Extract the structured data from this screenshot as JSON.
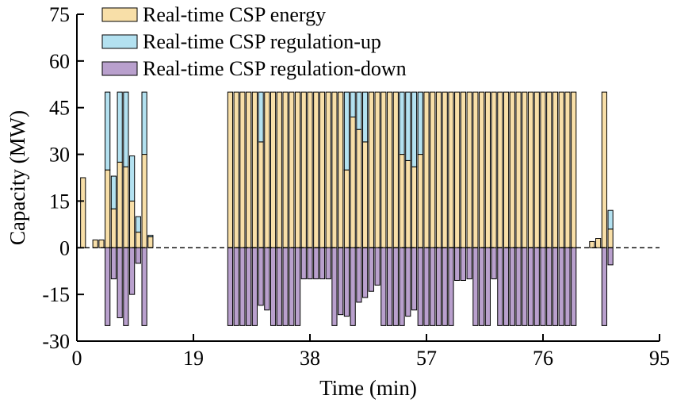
{
  "chart_data": {
    "type": "bar",
    "stacked": true,
    "xlabel": "Time (min)",
    "ylabel": "Capacity (MW)",
    "xlim": [
      0,
      95
    ],
    "ylim": [
      -30,
      75
    ],
    "xticks": [
      0,
      19,
      38,
      57,
      76,
      95
    ],
    "yticks": [
      -30,
      -15,
      0,
      15,
      30,
      45,
      60,
      75
    ],
    "legend_position": "top-left",
    "zero_line": "dashed",
    "bar_width": 0.8,
    "series": [
      {
        "name": "Real-time CSP energy",
        "color": "#f8dfa8",
        "points": [
          [
            1,
            22.5
          ],
          [
            3,
            2.5
          ],
          [
            4,
            2.5
          ],
          [
            5,
            25
          ],
          [
            6,
            12.5
          ],
          [
            7,
            27.5
          ],
          [
            8,
            26
          ],
          [
            9,
            15
          ],
          [
            10,
            5
          ],
          [
            11,
            30
          ],
          [
            12,
            3.5
          ],
          [
            25,
            50
          ],
          [
            26,
            50
          ],
          [
            27,
            50
          ],
          [
            28,
            50
          ],
          [
            29,
            50
          ],
          [
            30,
            34
          ],
          [
            31,
            50
          ],
          [
            32,
            50
          ],
          [
            33,
            50
          ],
          [
            34,
            50
          ],
          [
            35,
            50
          ],
          [
            36,
            50
          ],
          [
            37,
            50
          ],
          [
            38,
            50
          ],
          [
            39,
            50
          ],
          [
            40,
            50
          ],
          [
            41,
            50
          ],
          [
            42,
            50
          ],
          [
            43,
            50
          ],
          [
            44,
            25
          ],
          [
            45,
            42
          ],
          [
            46,
            38
          ],
          [
            47,
            34
          ],
          [
            48,
            50
          ],
          [
            49,
            50
          ],
          [
            50,
            50
          ],
          [
            51,
            50
          ],
          [
            52,
            50
          ],
          [
            53,
            30
          ],
          [
            54,
            28
          ],
          [
            55,
            26
          ],
          [
            56,
            30
          ],
          [
            57,
            50
          ],
          [
            58,
            50
          ],
          [
            59,
            50
          ],
          [
            60,
            50
          ],
          [
            61,
            50
          ],
          [
            62,
            50
          ],
          [
            63,
            50
          ],
          [
            64,
            50
          ],
          [
            65,
            50
          ],
          [
            66,
            50
          ],
          [
            67,
            50
          ],
          [
            68,
            50
          ],
          [
            69,
            50
          ],
          [
            70,
            50
          ],
          [
            71,
            50
          ],
          [
            72,
            50
          ],
          [
            73,
            50
          ],
          [
            74,
            50
          ],
          [
            75,
            50
          ],
          [
            76,
            50
          ],
          [
            77,
            50
          ],
          [
            78,
            50
          ],
          [
            79,
            50
          ],
          [
            80,
            50
          ],
          [
            81,
            50
          ],
          [
            84,
            2
          ],
          [
            85,
            3
          ],
          [
            86,
            50
          ],
          [
            87,
            6
          ]
        ]
      },
      {
        "name": "Real-time CSP regulation-up",
        "color": "#b3e1f0",
        "points": [
          [
            5,
            25
          ],
          [
            6,
            10.5
          ],
          [
            7,
            22.5
          ],
          [
            8,
            24
          ],
          [
            9,
            14.5
          ],
          [
            10,
            5
          ],
          [
            11,
            20
          ],
          [
            12,
            0.5
          ],
          [
            30,
            16
          ],
          [
            44,
            25
          ],
          [
            45,
            8
          ],
          [
            46,
            12
          ],
          [
            47,
            16
          ],
          [
            53,
            20
          ],
          [
            54,
            22
          ],
          [
            55,
            24
          ],
          [
            56,
            20
          ],
          [
            87,
            6
          ]
        ]
      },
      {
        "name": "Real-time CSP regulation-down",
        "color": "#b9a0cd",
        "points": [
          [
            5,
            -25
          ],
          [
            6,
            -10
          ],
          [
            7,
            -22.5
          ],
          [
            8,
            -25
          ],
          [
            9,
            -15
          ],
          [
            10,
            -5
          ],
          [
            11,
            -25
          ],
          [
            25,
            -25
          ],
          [
            26,
            -25
          ],
          [
            27,
            -25
          ],
          [
            28,
            -25
          ],
          [
            29,
            -25
          ],
          [
            30,
            -18.5
          ],
          [
            31,
            -20
          ],
          [
            32,
            -25
          ],
          [
            33,
            -25
          ],
          [
            34,
            -25
          ],
          [
            35,
            -25
          ],
          [
            36,
            -25
          ],
          [
            37,
            -10
          ],
          [
            38,
            -10
          ],
          [
            39,
            -10
          ],
          [
            40,
            -10
          ],
          [
            41,
            -10
          ],
          [
            42,
            -25
          ],
          [
            43,
            -21.5
          ],
          [
            44,
            -22
          ],
          [
            45,
            -25
          ],
          [
            46,
            -17.5
          ],
          [
            47,
            -16
          ],
          [
            48,
            -14
          ],
          [
            49,
            -12
          ],
          [
            50,
            -25
          ],
          [
            51,
            -25
          ],
          [
            52,
            -25
          ],
          [
            53,
            -25
          ],
          [
            54,
            -22
          ],
          [
            55,
            -20
          ],
          [
            56,
            -25
          ],
          [
            57,
            -25
          ],
          [
            58,
            -25
          ],
          [
            59,
            -25
          ],
          [
            60,
            -25
          ],
          [
            61,
            -25
          ],
          [
            62,
            -10.5
          ],
          [
            63,
            -10.5
          ],
          [
            64,
            -10
          ],
          [
            65,
            -25
          ],
          [
            66,
            -25
          ],
          [
            67,
            -25
          ],
          [
            68,
            -10
          ],
          [
            69,
            -25
          ],
          [
            70,
            -25
          ],
          [
            71,
            -25
          ],
          [
            72,
            -25
          ],
          [
            73,
            -25
          ],
          [
            74,
            -25
          ],
          [
            75,
            -25
          ],
          [
            76,
            -25
          ],
          [
            77,
            -25
          ],
          [
            78,
            -25
          ],
          [
            79,
            -25
          ],
          [
            80,
            -25
          ],
          [
            81,
            -25
          ],
          [
            86,
            -25
          ],
          [
            87,
            -5.5
          ]
        ]
      }
    ]
  }
}
